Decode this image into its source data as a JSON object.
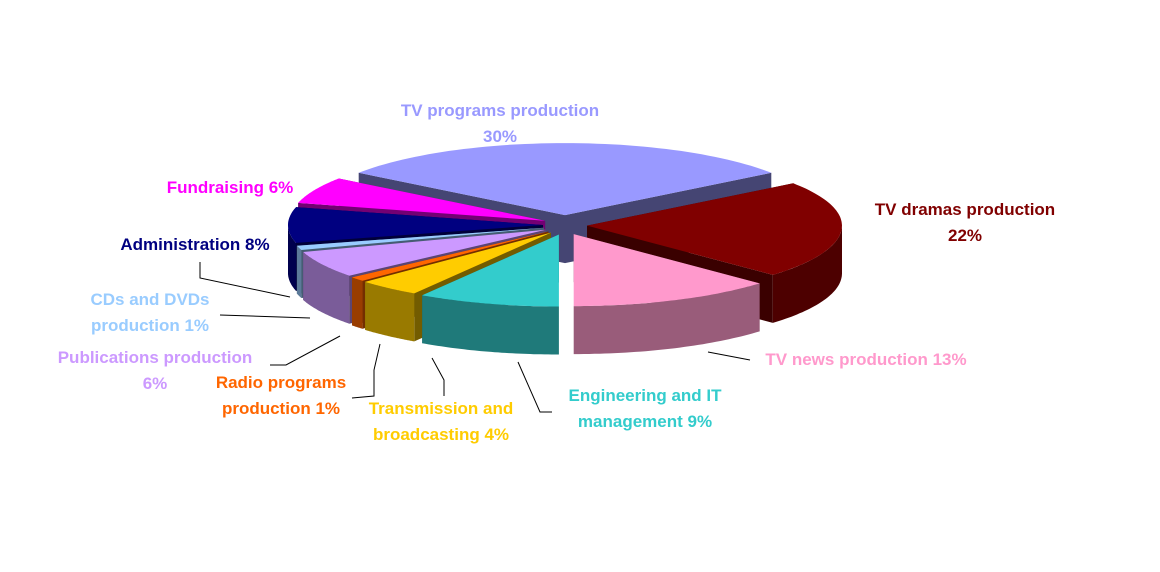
{
  "chart_data": {
    "type": "pie3d",
    "categories": [
      "TV programs production",
      "TV dramas production",
      "TV news production",
      "Engineering and IT management",
      "Transmission and broadcasting",
      "Radio programs production",
      "Publications production",
      "CDs and DVDs production",
      "Administration",
      "Fundraising"
    ],
    "values": [
      30,
      22,
      13,
      9,
      4,
      1,
      6,
      1,
      8,
      6
    ],
    "value_labels": [
      "30%",
      "22%",
      "13%",
      "9%",
      "4%",
      "1%",
      "6%",
      "1%",
      "8%",
      "6%"
    ],
    "colors": [
      "#9999ff",
      "#800000",
      "#ff99cc",
      "#33cccc",
      "#ffcc00",
      "#ff6600",
      "#cc99ff",
      "#99ccff",
      "#000080",
      "#ff00ff"
    ]
  }
}
